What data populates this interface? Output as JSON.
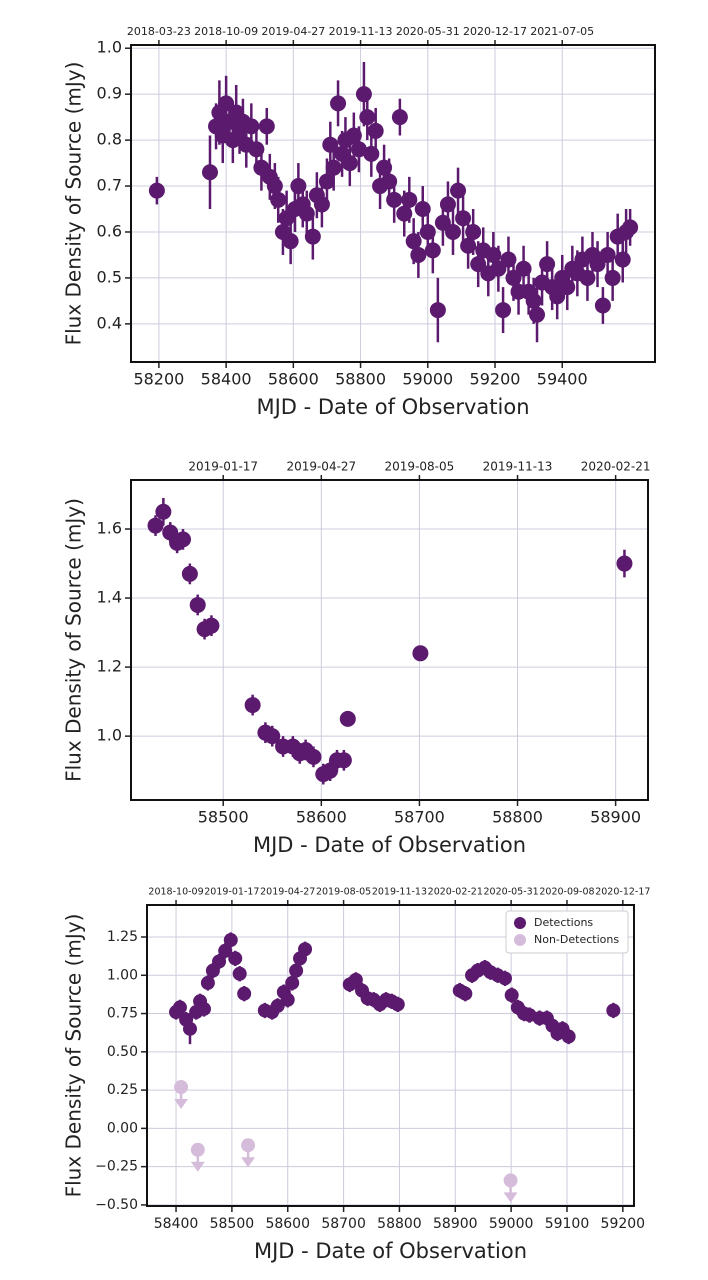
{
  "chart_data": [
    {
      "type": "scatter",
      "x_label": "MJD - Date of Observation",
      "y_label": "Flux Density of Source (mJy)",
      "color": "#5b1a6e",
      "grid": true,
      "xlim": [
        58117,
        59676
      ],
      "ylim": [
        0.317,
        1.007
      ],
      "xticks": [
        58200,
        58400,
        58600,
        58800,
        59000,
        59200,
        59400
      ],
      "yticks": [
        0.4,
        0.5,
        0.6,
        0.7,
        0.8,
        0.9,
        {
          "value": 1,
          "label": "1.0"
        }
      ],
      "x2ticks": [
        {
          "value": 58200,
          "label": "2018-03-23"
        },
        {
          "value": 58400,
          "label": "2018-10-09"
        },
        {
          "value": 58600,
          "label": "2019-04-27"
        },
        {
          "value": 58800,
          "label": "2019-11-13"
        },
        {
          "value": 59000,
          "label": "2020-05-31"
        },
        {
          "value": 59200,
          "label": "2020-12-17"
        },
        {
          "value": 59400,
          "label": "2021-07-05"
        }
      ],
      "x": [
        58194,
        58352,
        58370,
        58380,
        58390,
        58400,
        58410,
        58420,
        58430,
        58440,
        58450,
        58460,
        58475,
        58490,
        58505,
        58521,
        58530,
        58545,
        58555,
        58569,
        58580,
        58592,
        58605,
        58615,
        58628,
        58640,
        58658,
        58670,
        58685,
        58700,
        58710,
        58720,
        58733,
        58745,
        58755,
        58768,
        58780,
        58795,
        58810,
        58820,
        58832,
        58845,
        58858,
        58870,
        58885,
        58900,
        58917,
        58930,
        58945,
        58958,
        58972,
        58985,
        59000,
        59015,
        59030,
        59045,
        59060,
        59075,
        59090,
        59105,
        59120,
        59135,
        59150,
        59165,
        59180,
        59195,
        59210,
        59224,
        59240,
        59255,
        59270,
        59285,
        59300,
        59315,
        59325,
        59340,
        59355,
        59370,
        59385,
        59400,
        59415,
        59430,
        59445,
        59460,
        59475,
        59490,
        59505,
        59521,
        59535,
        59550,
        59565,
        59580,
        59590,
        59602
      ],
      "values": [
        0.69,
        0.73,
        0.83,
        0.86,
        0.81,
        0.88,
        0.84,
        0.8,
        0.86,
        0.82,
        0.84,
        0.79,
        0.83,
        0.78,
        0.74,
        0.83,
        0.72,
        0.7,
        0.67,
        0.6,
        0.63,
        0.58,
        0.65,
        0.7,
        0.66,
        0.64,
        0.59,
        0.68,
        0.66,
        0.71,
        0.79,
        0.74,
        0.88,
        0.77,
        0.8,
        0.75,
        0.81,
        0.78,
        0.9,
        0.85,
        0.77,
        0.82,
        0.7,
        0.74,
        0.71,
        0.67,
        0.85,
        0.64,
        0.67,
        0.58,
        0.55,
        0.65,
        0.6,
        0.56,
        0.43,
        0.62,
        0.66,
        0.6,
        0.69,
        0.63,
        0.57,
        0.6,
        0.53,
        0.56,
        0.51,
        0.55,
        0.52,
        0.43,
        0.54,
        0.5,
        0.47,
        0.52,
        0.47,
        0.45,
        0.42,
        0.49,
        0.53,
        0.48,
        0.46,
        0.5,
        0.48,
        0.52,
        0.51,
        0.54,
        0.5,
        0.55,
        0.53,
        0.44,
        0.55,
        0.5,
        0.59,
        0.54,
        0.6,
        0.61
      ],
      "errors": [
        0.03,
        0.08,
        0.05,
        0.07,
        0.06,
        0.06,
        0.05,
        0.05,
        0.06,
        0.05,
        0.05,
        0.05,
        0.05,
        0.05,
        0.05,
        0.04,
        0.05,
        0.05,
        0.05,
        0.05,
        0.06,
        0.05,
        0.05,
        0.05,
        0.05,
        0.05,
        0.05,
        0.05,
        0.05,
        0.05,
        0.05,
        0.05,
        0.05,
        0.05,
        0.05,
        0.05,
        0.05,
        0.05,
        0.07,
        0.05,
        0.05,
        0.05,
        0.05,
        0.05,
        0.05,
        0.05,
        0.04,
        0.05,
        0.05,
        0.05,
        0.05,
        0.05,
        0.05,
        0.05,
        0.07,
        0.05,
        0.05,
        0.05,
        0.05,
        0.05,
        0.05,
        0.05,
        0.05,
        0.05,
        0.05,
        0.05,
        0.05,
        0.05,
        0.05,
        0.05,
        0.05,
        0.05,
        0.05,
        0.05,
        0.06,
        0.05,
        0.05,
        0.05,
        0.05,
        0.05,
        0.05,
        0.05,
        0.05,
        0.05,
        0.05,
        0.05,
        0.05,
        0.04,
        0.05,
        0.05,
        0.05,
        0.05,
        0.05,
        0.04
      ]
    },
    {
      "type": "scatter",
      "x_label": "MJD - Date of Observation",
      "y_label": "Flux Density of Source (mJy)",
      "color": "#5b1a6e",
      "grid": true,
      "xlim": [
        58406,
        58933
      ],
      "ylim": [
        0.815,
        1.742
      ],
      "xticks": [
        58500,
        58600,
        58700,
        58800,
        58900
      ],
      "yticks": [
        {
          "value": 1,
          "label": "1.0"
        },
        1.2,
        1.4,
        1.6
      ],
      "x2ticks": [
        {
          "value": 58500,
          "label": "2019-01-17"
        },
        {
          "value": 58600,
          "label": "2019-04-27"
        },
        {
          "value": 58700,
          "label": "2019-08-05"
        },
        {
          "value": 58800,
          "label": "2019-11-13"
        },
        {
          "value": 58900,
          "label": "2020-02-21"
        }
      ],
      "x": [
        58431,
        58439,
        58446,
        58453,
        58459,
        58466,
        58474,
        58481,
        58488,
        58530,
        58543,
        58550,
        58561,
        58571,
        58578,
        58584,
        58592,
        58602,
        58609,
        58616,
        58623,
        58627,
        58701,
        58909
      ],
      "values": [
        1.61,
        1.65,
        1.59,
        1.56,
        1.57,
        1.47,
        1.38,
        1.31,
        1.32,
        1.09,
        1.01,
        1.0,
        0.97,
        0.97,
        0.95,
        0.96,
        0.94,
        0.89,
        0.9,
        0.93,
        0.93,
        1.05,
        1.24,
        1.5
      ],
      "errors": [
        0.03,
        0.04,
        0.03,
        0.03,
        0.03,
        0.03,
        0.03,
        0.03,
        0.03,
        0.03,
        0.03,
        0.03,
        0.03,
        0.03,
        0.03,
        0.03,
        0.03,
        0.03,
        0.03,
        0.03,
        0.03,
        0.02,
        0.02,
        0.04
      ]
    },
    {
      "type": "scatter",
      "x_label": "MJD - Date of Observation",
      "y_label": "Flux Density of Source (mJy)",
      "grid": true,
      "legend": "upper right",
      "xlim": [
        58348,
        59220
      ],
      "ylim": [
        -0.507,
        1.459
      ],
      "xticks": [
        58400,
        58500,
        58600,
        58700,
        58800,
        58900,
        59000,
        59100,
        59200
      ],
      "yticks": [
        {
          "value": -0.5,
          "label": "−0.50"
        },
        {
          "value": -0.25,
          "label": "−0.25"
        },
        {
          "value": 0,
          "label": "0.00"
        },
        0.25,
        {
          "value": 0.5,
          "label": "0.50"
        },
        0.75,
        {
          "value": 1,
          "label": "1.00"
        },
        1.25
      ],
      "x2ticks": [
        {
          "value": 58400,
          "label": "2018-10-09"
        },
        {
          "value": 58500,
          "label": "2019-01-17"
        },
        {
          "value": 58600,
          "label": "2019-04-27"
        },
        {
          "value": 58700,
          "label": "2019-08-05"
        },
        {
          "value": 58800,
          "label": "2019-11-13"
        },
        {
          "value": 58900,
          "label": "2020-02-21"
        },
        {
          "value": 59000,
          "label": "2020-05-31"
        },
        {
          "value": 59100,
          "label": "2020-09-08"
        },
        {
          "value": 59200,
          "label": "2020-12-17"
        }
      ],
      "series": [
        {
          "name": "Detections",
          "color": "#5b1a6e",
          "x": [
            58400,
            58407,
            58418,
            58425,
            58436,
            58443,
            58450,
            58457,
            58466,
            58477,
            58488,
            58498,
            58506,
            58514,
            58522,
            58559,
            58572,
            58582,
            58593,
            58600,
            58608,
            58615,
            58622,
            58631,
            58711,
            58722,
            58733,
            58743,
            58754,
            58765,
            58776,
            58786,
            58797,
            58908,
            58918,
            58930,
            58940,
            58953,
            58963,
            58976,
            58989,
            59001,
            59012,
            59023,
            59033,
            59051,
            59064,
            59074,
            59083,
            59092,
            59103,
            59183
          ],
          "values": [
            0.76,
            0.79,
            0.71,
            0.65,
            0.76,
            0.83,
            0.78,
            0.95,
            1.03,
            1.09,
            1.16,
            1.23,
            1.11,
            1.01,
            0.88,
            0.77,
            0.76,
            0.8,
            0.89,
            0.84,
            0.95,
            1.03,
            1.11,
            1.17,
            0.94,
            0.97,
            0.9,
            0.85,
            0.84,
            0.81,
            0.84,
            0.83,
            0.81,
            0.9,
            0.88,
            1.0,
            1.03,
            1.05,
            1.02,
            1.0,
            0.98,
            0.87,
            0.79,
            0.75,
            0.74,
            0.72,
            0.72,
            0.67,
            0.62,
            0.65,
            0.6,
            0.77
          ],
          "errors": [
            0.05,
            0.05,
            0.05,
            0.1,
            0.05,
            0.05,
            0.05,
            0.05,
            0.05,
            0.05,
            0.05,
            0.05,
            0.05,
            0.05,
            0.05,
            0.05,
            0.05,
            0.05,
            0.05,
            0.05,
            0.05,
            0.05,
            0.05,
            0.05,
            0.05,
            0.05,
            0.05,
            0.05,
            0.05,
            0.05,
            0.05,
            0.05,
            0.05,
            0.05,
            0.05,
            0.05,
            0.05,
            0.05,
            0.05,
            0.05,
            0.05,
            0.05,
            0.05,
            0.05,
            0.05,
            0.05,
            0.05,
            0.05,
            0.05,
            0.05,
            0.05,
            0.05
          ]
        },
        {
          "name": "Non-Detections",
          "color": "#d6bcdb",
          "marker": "arrow-down",
          "x": [
            58409,
            58439,
            58529,
            58999
          ],
          "values": [
            0.27,
            -0.14,
            -0.11,
            -0.34
          ]
        }
      ]
    }
  ]
}
